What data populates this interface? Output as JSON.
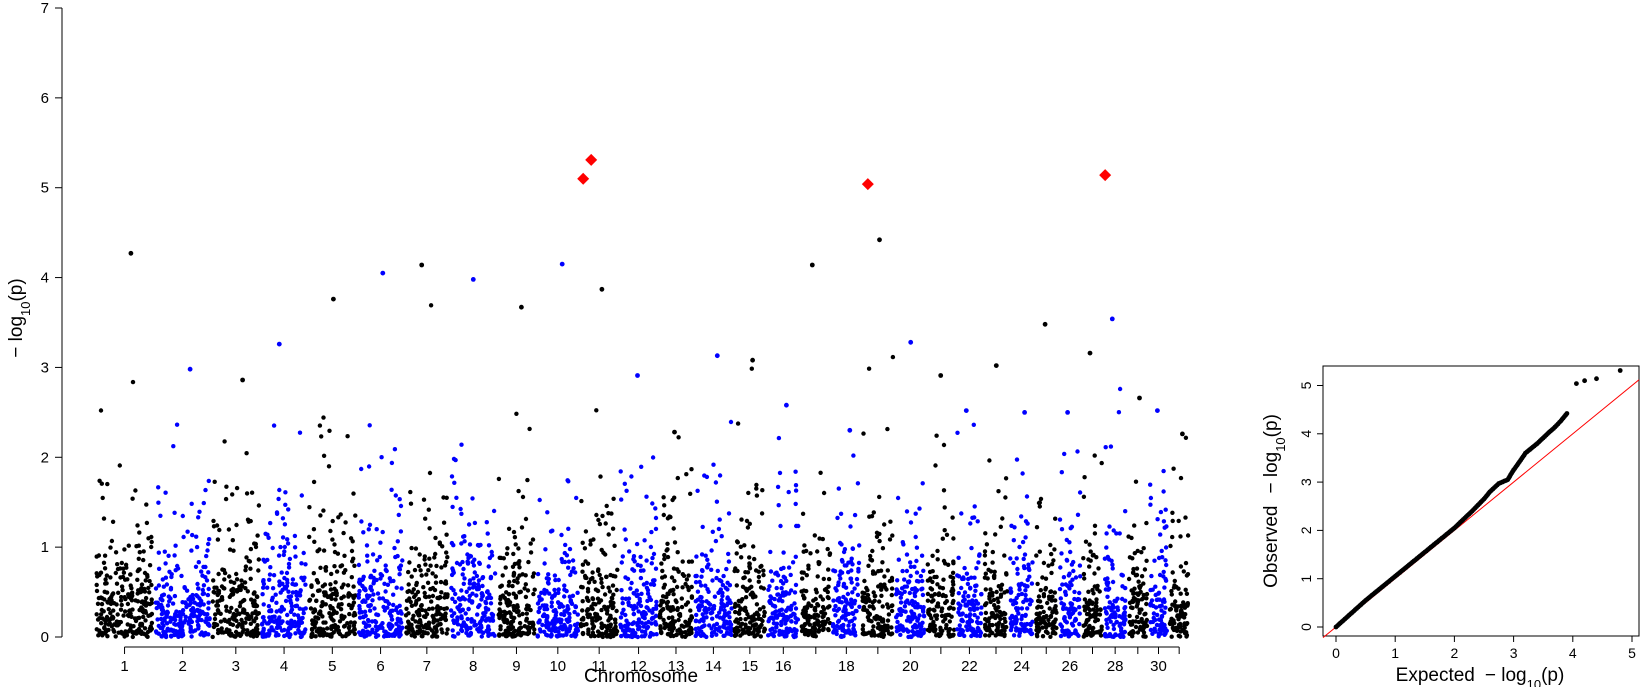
{
  "chart_data": [
    {
      "type": "scatter",
      "subtype": "manhattan",
      "xlabel": "Chromosome",
      "ylabel": "−log10(p)",
      "ylabel_parts": {
        "prefix": "− log",
        "sub": "10",
        "arg": "(p)"
      },
      "ylim": [
        0,
        7
      ],
      "yticks": [
        0,
        1,
        2,
        3,
        4,
        5,
        6,
        7
      ],
      "chromosomes": [
        "1",
        "2",
        "3",
        "4",
        "5",
        "6",
        "7",
        "8",
        "9",
        "10",
        "11",
        "12",
        "13",
        "14",
        "15",
        "16",
        "17",
        "18",
        "19",
        "20",
        "21",
        "22",
        "23",
        "24",
        "25",
        "26",
        "27",
        "28",
        "29",
        "30",
        "31"
      ],
      "xtick_labels": [
        "1",
        "2",
        "3",
        "4",
        "5",
        "6",
        "7",
        "8",
        "9",
        "10",
        "11",
        "12",
        "13",
        "14",
        "15",
        "16",
        "18",
        "20",
        "22",
        "24",
        "26",
        "28",
        "30"
      ],
      "colors": {
        "odd": "#000000",
        "even": "#0000ff",
        "highlight": "#ff0000"
      },
      "chromosome_peaks": [
        4.27,
        2.98,
        2.86,
        3.26,
        3.76,
        4.05,
        4.14,
        3.98,
        3.67,
        4.15,
        3.87,
        2.91,
        2.28,
        3.13,
        3.08,
        2.58,
        4.14,
        2.3,
        4.42,
        3.28,
        2.91,
        2.52,
        3.02,
        2.5,
        3.48,
        2.5,
        3.16,
        3.54,
        2.66,
        2.52,
        2.26
      ],
      "highlighted_snps": [
        {
          "chromosome": "11",
          "y": 5.31
        },
        {
          "chromosome": "11",
          "y": 5.1
        },
        {
          "chromosome": "19",
          "y": 5.04
        },
        {
          "chromosome": "28",
          "y": 5.14
        }
      ],
      "grid": false,
      "legend": "none"
    },
    {
      "type": "scatter",
      "subtype": "qq",
      "xlabel": "Expected −log10(p)",
      "ylabel": "Observed −log10(p)",
      "xlabel_parts": {
        "word": "Expected",
        "prefix": "− log",
        "sub": "10",
        "arg": "(p)"
      },
      "ylabel_parts": {
        "word": "Observed",
        "prefix": "− log",
        "sub": "10",
        "arg": "(p)"
      },
      "xlim": [
        0,
        5
      ],
      "ylim": [
        0,
        5.3
      ],
      "xticks": [
        0,
        1,
        2,
        3,
        4,
        5
      ],
      "yticks": [
        0,
        1,
        2,
        3,
        4,
        5
      ],
      "reference_line": {
        "from": [
          0,
          0
        ],
        "to": [
          5.0,
          5.0
        ],
        "color": "#ff0000"
      },
      "points": [
        [
          0,
          0
        ],
        [
          0.5,
          0.55
        ],
        [
          1,
          1.05
        ],
        [
          1.5,
          1.55
        ],
        [
          2,
          2.05
        ],
        [
          2.3,
          2.4
        ],
        [
          2.5,
          2.65
        ],
        [
          2.6,
          2.8
        ],
        [
          2.75,
          2.97
        ],
        [
          2.9,
          3.05
        ],
        [
          3.0,
          3.25
        ],
        [
          3.1,
          3.42
        ],
        [
          3.2,
          3.6
        ],
        [
          3.4,
          3.8
        ],
        [
          3.6,
          4.03
        ],
        [
          3.7,
          4.14
        ],
        [
          3.8,
          4.27
        ],
        [
          3.9,
          4.42
        ],
        [
          4.06,
          5.04
        ],
        [
          4.2,
          5.1
        ],
        [
          4.4,
          5.14
        ],
        [
          4.8,
          5.31
        ]
      ],
      "grid": false,
      "legend": "none"
    }
  ]
}
